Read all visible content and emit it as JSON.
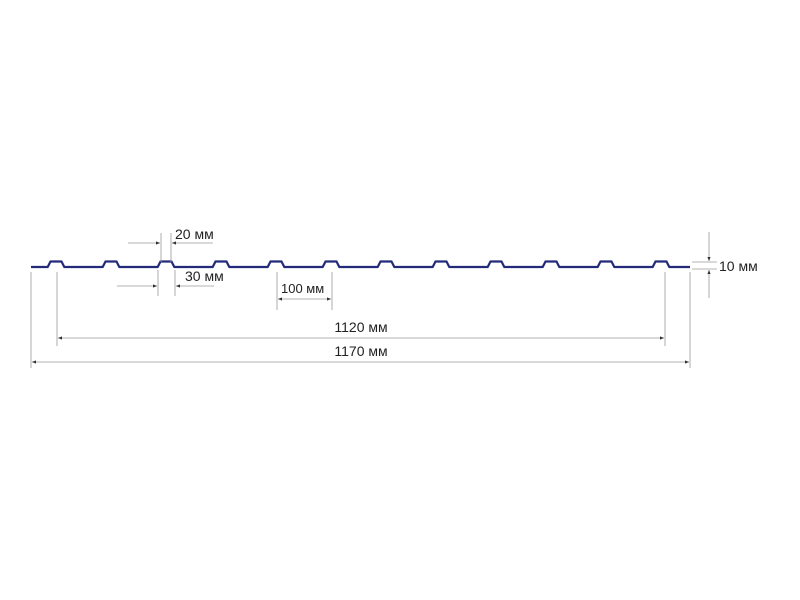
{
  "dimensions": {
    "crest_top_width": "20 мм",
    "crest_bottom_width": "30 мм",
    "pitch": "100 мм",
    "height": "10 мм",
    "useful_width": "1120 мм",
    "total_width": "1170 мм"
  },
  "colors": {
    "profile": "#232a7a",
    "dimension_lines": "#9a9a9a",
    "text": "#222222"
  }
}
